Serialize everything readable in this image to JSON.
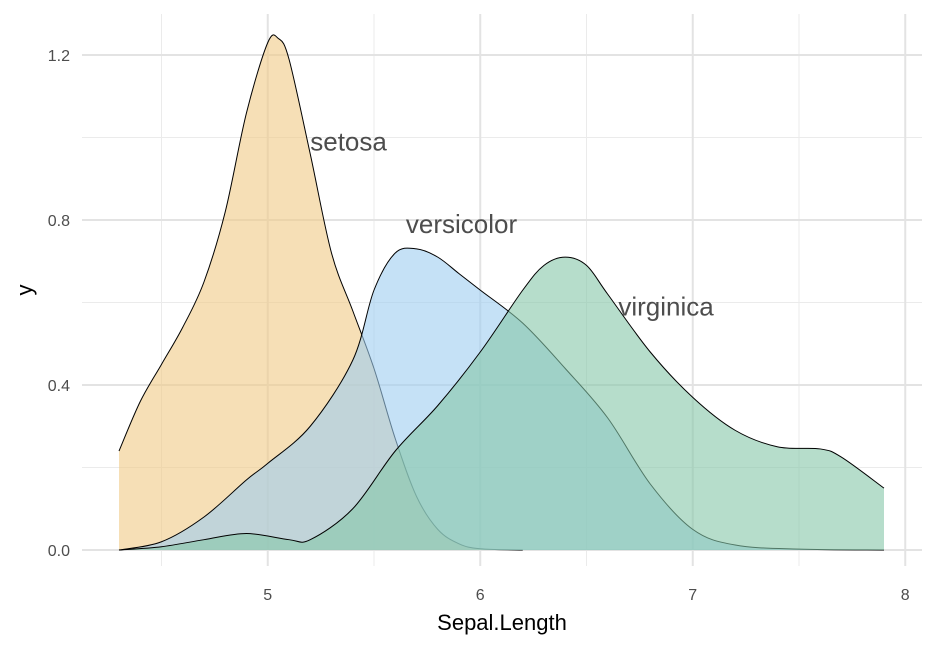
{
  "chart_data": {
    "type": "area",
    "xlabel": "Sepal.Length",
    "ylabel": "y",
    "xlim": [
      4.3,
      7.9
    ],
    "ylim": [
      0,
      1.25
    ],
    "x_ticks": [
      5,
      6,
      7,
      8
    ],
    "y_ticks": [
      0.0,
      0.4,
      0.8,
      1.2
    ],
    "x_tick_labels": [
      "5",
      "6",
      "7",
      "8"
    ],
    "y_tick_labels": [
      "0.0",
      "0.4",
      "0.8",
      "1.2"
    ],
    "grid": true,
    "series": [
      {
        "name": "setosa",
        "color": "#f0c986",
        "label_at": [
          5.2,
          0.99
        ],
        "x": [
          4.3,
          4.4,
          4.5,
          4.6,
          4.7,
          4.8,
          4.9,
          5.0,
          5.05,
          5.1,
          5.2,
          5.3,
          5.4,
          5.5,
          5.6,
          5.7,
          5.8,
          5.9,
          6.0,
          6.2
        ],
        "y": [
          0.24,
          0.36,
          0.45,
          0.54,
          0.65,
          0.82,
          1.06,
          1.23,
          1.24,
          1.19,
          0.96,
          0.72,
          0.58,
          0.44,
          0.27,
          0.13,
          0.05,
          0.015,
          0.003,
          0.0
        ]
      },
      {
        "name": "versicolor",
        "color": "#9fcdf0",
        "label_at": [
          5.65,
          0.79
        ],
        "x": [
          4.3,
          4.5,
          4.7,
          4.9,
          5.0,
          5.2,
          5.4,
          5.5,
          5.6,
          5.7,
          5.8,
          5.9,
          6.0,
          6.2,
          6.4,
          6.6,
          6.8,
          7.0,
          7.2,
          7.5,
          7.9
        ],
        "y": [
          0.0,
          0.02,
          0.08,
          0.17,
          0.21,
          0.3,
          0.46,
          0.63,
          0.72,
          0.73,
          0.71,
          0.67,
          0.63,
          0.55,
          0.44,
          0.32,
          0.16,
          0.05,
          0.012,
          0.002,
          0.0
        ]
      },
      {
        "name": "virginica",
        "color": "#86c7a8",
        "label_at": [
          6.65,
          0.59
        ],
        "x": [
          4.3,
          4.5,
          4.7,
          4.9,
          5.1,
          5.2,
          5.4,
          5.6,
          5.8,
          6.0,
          6.2,
          6.3,
          6.4,
          6.5,
          6.6,
          6.8,
          7.0,
          7.2,
          7.4,
          7.6,
          7.7,
          7.9
        ],
        "y": [
          0.0,
          0.008,
          0.025,
          0.04,
          0.025,
          0.025,
          0.1,
          0.24,
          0.35,
          0.48,
          0.63,
          0.69,
          0.71,
          0.69,
          0.62,
          0.48,
          0.37,
          0.29,
          0.25,
          0.245,
          0.225,
          0.15
        ]
      }
    ],
    "fill_opacity": 0.6
  }
}
